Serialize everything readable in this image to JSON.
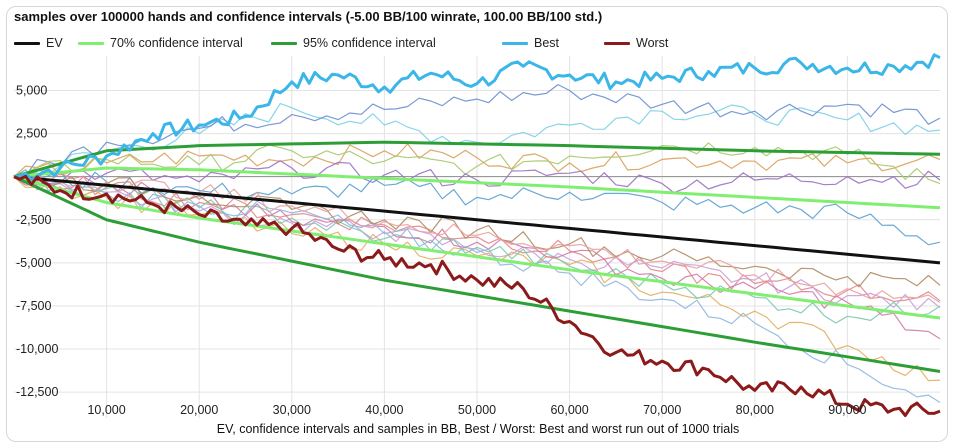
{
  "chart_data": {
    "type": "line",
    "title": "samples over 100000 hands and confidence intervals (-5.00 BB/100 winrate, 100.00 BB/100 std.)",
    "xlabel": "EV, confidence intervals and samples in BB, Best / Worst: Best and worst run out of 1000 trials",
    "ylabel": "",
    "xlim": [
      0,
      100000
    ],
    "ylim": [
      -14000,
      7000
    ],
    "x_ticks": [
      10000,
      20000,
      30000,
      40000,
      50000,
      60000,
      70000,
      80000,
      90000
    ],
    "x_tick_labels": [
      "10,000",
      "20,000",
      "30,000",
      "40,000",
      "50,000",
      "60,000",
      "70,000",
      "80,000",
      "90,000"
    ],
    "y_ticks": [
      5000,
      2500,
      0,
      -2500,
      -5000,
      -7500,
      -10000,
      -12500
    ],
    "y_tick_labels": [
      "5,000",
      "2,500",
      "",
      "-2,500",
      "-5,000",
      "-7,500",
      "-10,000",
      "-12,500"
    ],
    "grid": true,
    "legend_position": "top-left",
    "winrate_bb_per_100": -5,
    "std_bb_per_100": 100,
    "trials": 1000,
    "series": [
      {
        "name": "EV",
        "color": "#111111",
        "x": [
          0,
          20000,
          40000,
          60000,
          80000,
          100000
        ],
        "values": [
          0,
          -1000,
          -2000,
          -3000,
          -4000,
          -5000
        ]
      },
      {
        "name": "70% confidence interval",
        "color": "#80ee70",
        "x": [
          0,
          10000,
          20000,
          40000,
          60000,
          80000,
          100000
        ],
        "bands": [
          {
            "values": [
              0,
              500,
              400,
              -100,
              -600,
              -1200,
              -1800
            ]
          },
          {
            "values": [
              0,
              -1500,
              -2400,
              -3900,
              -5400,
              -6800,
              -8200
            ]
          }
        ]
      },
      {
        "name": "95% confidence interval",
        "color": "#2d9e36",
        "x": [
          0,
          10000,
          20000,
          40000,
          60000,
          80000,
          100000
        ],
        "bands": [
          {
            "values": [
              0,
              1500,
              1800,
              2000,
              1800,
              1500,
              1300
            ]
          },
          {
            "values": [
              0,
              -2500,
              -3800,
              -6000,
              -7800,
              -9600,
              -11300
            ]
          }
        ]
      },
      {
        "name": "Best",
        "color": "#3bb6e8",
        "x": [
          0,
          5000,
          10000,
          15000,
          20000,
          25000,
          30000,
          35000,
          40000,
          45000,
          50000,
          55000,
          60000,
          65000,
          70000,
          75000,
          80000,
          85000,
          90000,
          95000,
          100000
        ],
        "values": [
          0,
          500,
          1200,
          2500,
          3000,
          3500,
          5500,
          5900,
          5200,
          6000,
          5400,
          6400,
          5900,
          5500,
          5700,
          6100,
          6300,
          6600,
          6300,
          6400,
          6900
        ]
      },
      {
        "name": "Worst",
        "color": "#8b1a1a",
        "x": [
          0,
          5000,
          10000,
          15000,
          20000,
          25000,
          30000,
          35000,
          40000,
          45000,
          50000,
          55000,
          60000,
          65000,
          70000,
          75000,
          80000,
          85000,
          90000,
          95000,
          100000
        ],
        "values": [
          0,
          -800,
          -1000,
          -1600,
          -2200,
          -2800,
          -3000,
          -4200,
          -4800,
          -5100,
          -6000,
          -6500,
          -8400,
          -10200,
          -10700,
          -11200,
          -12400,
          -12200,
          -13200,
          -13500,
          -13600
        ]
      },
      {
        "name": "",
        "color": "#7bd0e6",
        "x": [
          0,
          10000,
          20000,
          30000,
          40000,
          50000,
          60000,
          70000,
          80000,
          90000,
          100000
        ],
        "values": [
          0,
          1500,
          2500,
          4000,
          3000,
          2000,
          3000,
          3800,
          3600,
          3300,
          2700
        ]
      },
      {
        "name": "",
        "color": "#6b8fd0",
        "x": [
          0,
          10000,
          20000,
          30000,
          40000,
          50000,
          60000,
          70000,
          80000,
          90000,
          100000
        ],
        "values": [
          0,
          2000,
          2800,
          3600,
          3900,
          4500,
          5000,
          4200,
          3800,
          4200,
          3400
        ]
      },
      {
        "name": "",
        "color": "#d9a05a",
        "x": [
          0,
          10000,
          20000,
          30000,
          40000,
          50000,
          60000,
          70000,
          80000,
          90000,
          100000
        ],
        "values": [
          0,
          800,
          1200,
          1000,
          1500,
          1100,
          800,
          1000,
          900,
          800,
          1000
        ]
      },
      {
        "name": "",
        "color": "#a9c96a",
        "x": [
          0,
          10000,
          20000,
          30000,
          40000,
          50000,
          60000,
          70000,
          80000,
          90000,
          100000
        ],
        "values": [
          0,
          1000,
          700,
          1500,
          900,
          600,
          1200,
          1800,
          1700,
          1300,
          -400
        ]
      },
      {
        "name": "",
        "color": "#9a6fc2",
        "x": [
          0,
          10000,
          20000,
          30000,
          40000,
          50000,
          60000,
          70000,
          80000,
          90000,
          100000
        ],
        "values": [
          0,
          200,
          -300,
          500,
          100,
          -200,
          200,
          -400,
          -200,
          0,
          -200
        ]
      },
      {
        "name": "",
        "color": "#5aa0d0",
        "x": [
          0,
          10000,
          20000,
          30000,
          40000,
          50000,
          60000,
          70000,
          80000,
          90000,
          100000
        ],
        "values": [
          0,
          -300,
          -800,
          -1000,
          -500,
          -1200,
          -900,
          -1500,
          -1800,
          -2100,
          -3800
        ]
      },
      {
        "name": "",
        "color": "#e08888",
        "x": [
          0,
          10000,
          20000,
          30000,
          40000,
          50000,
          60000,
          70000,
          80000,
          90000,
          100000
        ],
        "values": [
          0,
          -600,
          -1500,
          -2200,
          -2800,
          -3500,
          -4300,
          -5500,
          -6200,
          -6600,
          -7200
        ]
      },
      {
        "name": "",
        "color": "#c9a0dc",
        "x": [
          0,
          10000,
          20000,
          30000,
          40000,
          50000,
          60000,
          70000,
          80000,
          90000,
          100000
        ],
        "values": [
          0,
          -900,
          -2000,
          -2700,
          -3200,
          -4200,
          -4800,
          -5300,
          -6000,
          -6900,
          -7600
        ]
      },
      {
        "name": "",
        "color": "#e0b060",
        "x": [
          0,
          10000,
          20000,
          30000,
          40000,
          50000,
          60000,
          70000,
          80000,
          90000,
          100000
        ],
        "values": [
          0,
          -1200,
          -2200,
          -3300,
          -3900,
          -4600,
          -5100,
          -6700,
          -7800,
          -9800,
          -11800
        ]
      },
      {
        "name": "",
        "color": "#7cc8b0",
        "x": [
          0,
          10000,
          20000,
          30000,
          40000,
          50000,
          60000,
          70000,
          80000,
          90000,
          100000
        ],
        "values": [
          0,
          -700,
          -1800,
          -2400,
          -3600,
          -4100,
          -5200,
          -6200,
          -7000,
          -8100,
          -7500
        ]
      },
      {
        "name": "",
        "color": "#d27aa8",
        "x": [
          0,
          10000,
          20000,
          30000,
          40000,
          50000,
          60000,
          70000,
          80000,
          90000,
          100000
        ],
        "values": [
          0,
          -500,
          -1300,
          -2600,
          -2900,
          -3800,
          -4400,
          -5900,
          -6500,
          -7300,
          -9400
        ]
      },
      {
        "name": "",
        "color": "#8fb6e0",
        "x": [
          0,
          10000,
          20000,
          30000,
          40000,
          50000,
          60000,
          70000,
          80000,
          90000,
          100000
        ],
        "values": [
          0,
          -1000,
          -1700,
          -2100,
          -3300,
          -4400,
          -5600,
          -7100,
          -8500,
          -10900,
          -13100
        ]
      },
      {
        "name": "",
        "color": "#b08a60",
        "x": [
          0,
          10000,
          20000,
          30000,
          40000,
          50000,
          60000,
          70000,
          80000,
          90000,
          100000
        ],
        "values": [
          0,
          -400,
          -1100,
          -1900,
          -2500,
          -3100,
          -3900,
          -4600,
          -5200,
          -5800,
          -6300
        ]
      },
      {
        "name": "",
        "color": "#e9a0a0",
        "x": [
          0,
          10000,
          20000,
          30000,
          40000,
          50000,
          60000,
          70000,
          80000,
          90000,
          100000
        ],
        "values": [
          0,
          -300,
          -900,
          -1700,
          -2600,
          -3400,
          -4000,
          -4900,
          -5700,
          -6500,
          -7300
        ]
      }
    ]
  },
  "legend": [
    {
      "label": "EV",
      "color": "#111111"
    },
    {
      "label": "70% confidence interval",
      "color": "#80ee70"
    },
    {
      "label": "95% confidence interval",
      "color": "#2d9e36"
    },
    {
      "label": "Best",
      "color": "#3bb6e8"
    },
    {
      "label": "Worst",
      "color": "#8b1a1a"
    }
  ]
}
